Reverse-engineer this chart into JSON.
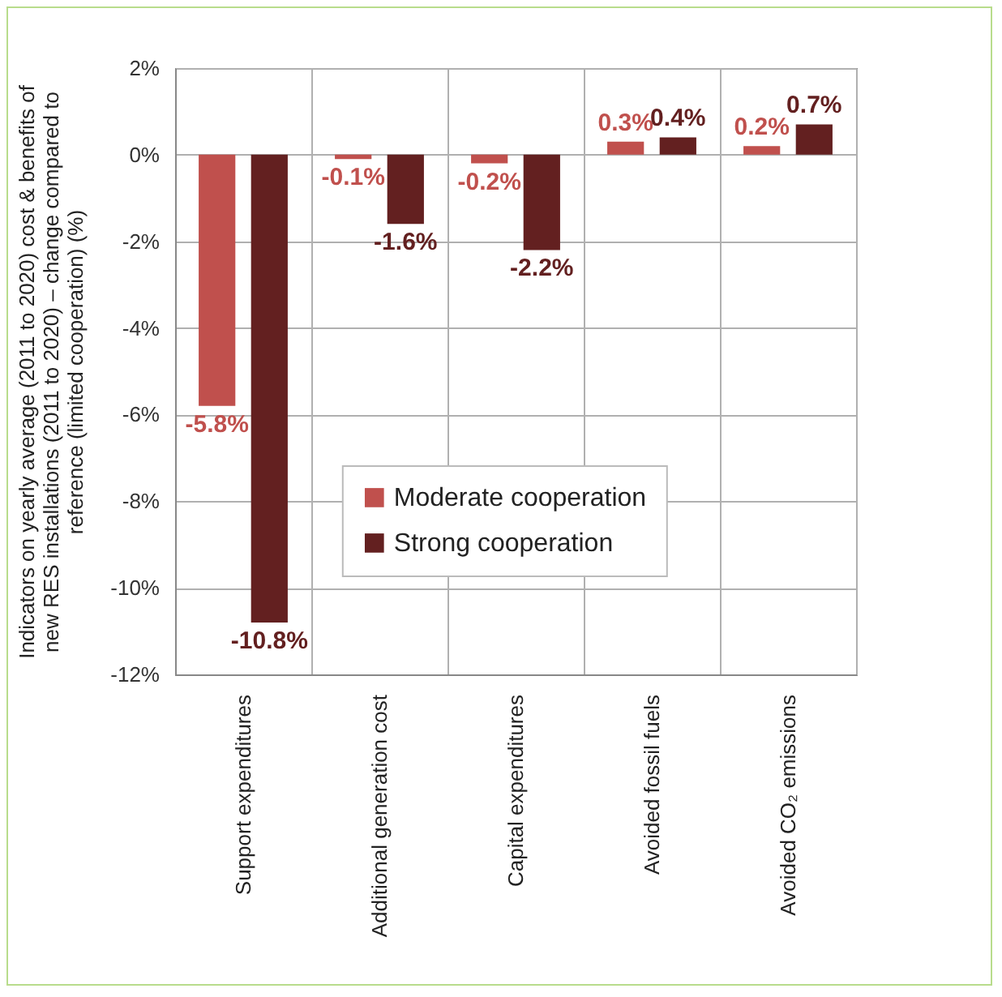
{
  "chart_data": {
    "type": "bar",
    "ylabel": "Indicators on yearly average (2011 to 2020) cost & benefits of new RES installations (2011 to 2020) – change compared to reference (limited cooperation) (%)",
    "categories": [
      "Support expenditures",
      "Additional generation cost",
      "Capital expenditures",
      "Avoided fossil fuels",
      "Avoided CO₂ emissions"
    ],
    "series": [
      {
        "name": "Moderate cooperation",
        "color": "#c0504d",
        "values": [
          -5.8,
          -0.1,
          -0.2,
          0.3,
          0.2
        ],
        "value_labels": [
          "-5.8%",
          "-0.1%",
          "-0.2%",
          "0.3%",
          "0.2%"
        ]
      },
      {
        "name": "Strong cooperation",
        "color": "#632020",
        "values": [
          -10.8,
          -1.6,
          -2.2,
          0.4,
          0.7
        ],
        "value_labels": [
          "-10.8%",
          "-1.6%",
          "-2.2%",
          "0.4%",
          "0.7%"
        ]
      }
    ],
    "ylim": [
      -12,
      2
    ],
    "yticks": [
      {
        "value": -12,
        "label": "-12%"
      },
      {
        "value": -10,
        "label": "-10%"
      },
      {
        "value": -8,
        "label": "-8%"
      },
      {
        "value": -6,
        "label": "-6%"
      },
      {
        "value": -4,
        "label": "-4%"
      },
      {
        "value": -2,
        "label": "-2%"
      },
      {
        "value": 0,
        "label": "0%"
      },
      {
        "value": 2,
        "label": "2%"
      }
    ],
    "grid": true,
    "legend": "bottom"
  }
}
